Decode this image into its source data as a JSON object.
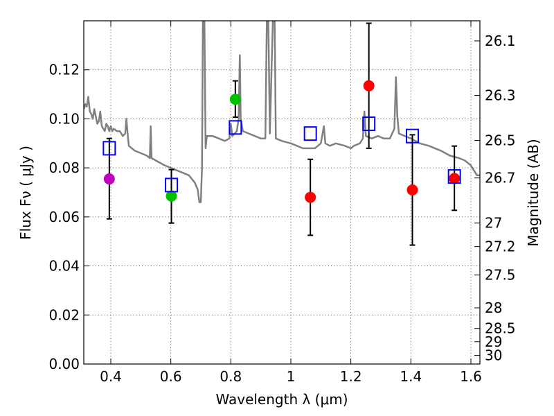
{
  "chart_data": {
    "type": "scatter",
    "xlabel": "Wavelength  λ (μm)",
    "ylabel": "Flux  Fν  ( μJy )",
    "ylabel_right": "Magnitude (AB)",
    "xlim": [
      0.31,
      1.63
    ],
    "ylim": [
      0.0,
      0.14
    ],
    "grid": true,
    "x_ticks": [
      0.4,
      0.6,
      0.8,
      1.0,
      1.2,
      1.4,
      1.6
    ],
    "x_tick_labels": [
      "0.4",
      "0.6",
      "0.8",
      "1",
      "1.2",
      "1.4",
      "1.6"
    ],
    "y_ticks": [
      0.0,
      0.02,
      0.04,
      0.06,
      0.08,
      0.1,
      0.12
    ],
    "y_tick_labels": [
      "0.00",
      "0.02",
      "0.04",
      "0.06",
      "0.08",
      "0.10",
      "0.12"
    ],
    "right_ticks": [
      {
        "flux": 0.1318,
        "label": "26.1"
      },
      {
        "flux": 0.1096,
        "label": "26.3"
      },
      {
        "flux": 0.0912,
        "label": "26.5"
      },
      {
        "flux": 0.0759,
        "label": "26.7"
      },
      {
        "flux": 0.0575,
        "label": "27"
      },
      {
        "flux": 0.0479,
        "label": "27.2"
      },
      {
        "flux": 0.0363,
        "label": "27.5"
      },
      {
        "flux": 0.0229,
        "label": "28"
      },
      {
        "flux": 0.0145,
        "label": "28.5"
      },
      {
        "flux": 0.0091,
        "label": "29"
      },
      {
        "flux": 0.0035,
        "label": "30"
      }
    ],
    "series": [
      {
        "name": "observed_violet",
        "marker": "circle",
        "color": "#bf00bf",
        "points": [
          {
            "x": 0.395,
            "y": 0.0755,
            "err_low": 0.0163,
            "err_high": 0.0165
          }
        ]
      },
      {
        "name": "observed_green",
        "marker": "circle",
        "color": "#00bf00",
        "points": [
          {
            "x": 0.602,
            "y": 0.0685,
            "err_low": 0.011,
            "err_high": 0.0108
          },
          {
            "x": 0.815,
            "y": 0.108,
            "err_low": 0.0073,
            "err_high": 0.0075
          }
        ]
      },
      {
        "name": "observed_red",
        "marker": "circle",
        "color": "#ff0000",
        "points": [
          {
            "x": 1.065,
            "y": 0.068,
            "err_low": 0.0155,
            "err_high": 0.0155
          },
          {
            "x": 1.26,
            "y": 0.1135,
            "err_low": 0.0255,
            "err_high": 0.0255
          },
          {
            "x": 1.405,
            "y": 0.071,
            "err_low": 0.0225,
            "err_high": 0.0225
          },
          {
            "x": 1.545,
            "y": 0.0757,
            "err_low": 0.013,
            "err_high": 0.0132
          }
        ]
      },
      {
        "name": "model_photometry",
        "marker": "square-open",
        "color": "#0000ff",
        "points": [
          {
            "x": 0.395,
            "y": 0.088
          },
          {
            "x": 0.602,
            "y": 0.073
          },
          {
            "x": 0.815,
            "y": 0.0965
          },
          {
            "x": 1.065,
            "y": 0.094
          },
          {
            "x": 1.26,
            "y": 0.098
          },
          {
            "x": 1.405,
            "y": 0.093
          },
          {
            "x": 1.545,
            "y": 0.0765
          }
        ]
      }
    ],
    "model_spectrum": {
      "name": "model SED",
      "color": "#808080",
      "points": [
        [
          0.31,
          0.104
        ],
        [
          0.315,
          0.106
        ],
        [
          0.32,
          0.105
        ],
        [
          0.325,
          0.109
        ],
        [
          0.33,
          0.103
        ],
        [
          0.335,
          0.102
        ],
        [
          0.34,
          0.1
        ],
        [
          0.345,
          0.104
        ],
        [
          0.35,
          0.101
        ],
        [
          0.355,
          0.098
        ],
        [
          0.36,
          0.099
        ],
        [
          0.365,
          0.103
        ],
        [
          0.37,
          0.097
        ],
        [
          0.375,
          0.096
        ],
        [
          0.38,
          0.095
        ],
        [
          0.385,
          0.098
        ],
        [
          0.39,
          0.097
        ],
        [
          0.395,
          0.095
        ],
        [
          0.4,
          0.097
        ],
        [
          0.405,
          0.095
        ],
        [
          0.41,
          0.096
        ],
        [
          0.42,
          0.095
        ],
        [
          0.43,
          0.095
        ],
        [
          0.44,
          0.093
        ],
        [
          0.448,
          0.094
        ],
        [
          0.452,
          0.1
        ],
        [
          0.456,
          0.094
        ],
        [
          0.46,
          0.089
        ],
        [
          0.47,
          0.088
        ],
        [
          0.48,
          0.087
        ],
        [
          0.5,
          0.086
        ],
        [
          0.52,
          0.085
        ],
        [
          0.53,
          0.084
        ],
        [
          0.533,
          0.097
        ],
        [
          0.536,
          0.084
        ],
        [
          0.55,
          0.083
        ],
        [
          0.58,
          0.081
        ],
        [
          0.6,
          0.08
        ],
        [
          0.62,
          0.079
        ],
        [
          0.64,
          0.078
        ],
        [
          0.66,
          0.077
        ],
        [
          0.68,
          0.074
        ],
        [
          0.69,
          0.071
        ],
        [
          0.695,
          0.066
        ],
        [
          0.7,
          0.066
        ],
        [
          0.704,
          0.08
        ],
        [
          0.707,
          0.14
        ],
        [
          0.712,
          0.14
        ],
        [
          0.716,
          0.088
        ],
        [
          0.72,
          0.093
        ],
        [
          0.74,
          0.093
        ],
        [
          0.76,
          0.092
        ],
        [
          0.78,
          0.091
        ],
        [
          0.795,
          0.092
        ],
        [
          0.8,
          0.098
        ],
        [
          0.805,
          0.093
        ],
        [
          0.82,
          0.095
        ],
        [
          0.826,
          0.1
        ],
        [
          0.83,
          0.126
        ],
        [
          0.833,
          0.1
        ],
        [
          0.84,
          0.095
        ],
        [
          0.86,
          0.094
        ],
        [
          0.88,
          0.093
        ],
        [
          0.9,
          0.092
        ],
        [
          0.915,
          0.092
        ],
        [
          0.92,
          0.14
        ],
        [
          0.925,
          0.14
        ],
        [
          0.93,
          0.094
        ],
        [
          0.94,
          0.14
        ],
        [
          0.946,
          0.14
        ],
        [
          0.95,
          0.092
        ],
        [
          0.97,
          0.091
        ],
        [
          1.0,
          0.09
        ],
        [
          1.02,
          0.089
        ],
        [
          1.04,
          0.088
        ],
        [
          1.06,
          0.088
        ],
        [
          1.08,
          0.088
        ],
        [
          1.09,
          0.089
        ],
        [
          1.1,
          0.09
        ],
        [
          1.11,
          0.097
        ],
        [
          1.115,
          0.09
        ],
        [
          1.13,
          0.089
        ],
        [
          1.15,
          0.09
        ],
        [
          1.18,
          0.089
        ],
        [
          1.2,
          0.088
        ],
        [
          1.21,
          0.089
        ],
        [
          1.23,
          0.09
        ],
        [
          1.24,
          0.092
        ],
        [
          1.245,
          0.103
        ],
        [
          1.25,
          0.093
        ],
        [
          1.27,
          0.092
        ],
        [
          1.29,
          0.093
        ],
        [
          1.31,
          0.092
        ],
        [
          1.33,
          0.092
        ],
        [
          1.345,
          0.096
        ],
        [
          1.35,
          0.117
        ],
        [
          1.355,
          0.101
        ],
        [
          1.36,
          0.094
        ],
        [
          1.38,
          0.093
        ],
        [
          1.4,
          0.092
        ],
        [
          1.43,
          0.09
        ],
        [
          1.46,
          0.089
        ],
        [
          1.5,
          0.087
        ],
        [
          1.53,
          0.085
        ],
        [
          1.56,
          0.084
        ],
        [
          1.58,
          0.083
        ],
        [
          1.6,
          0.081
        ],
        [
          1.61,
          0.079
        ],
        [
          1.62,
          0.077
        ],
        [
          1.63,
          0.077
        ]
      ]
    }
  }
}
